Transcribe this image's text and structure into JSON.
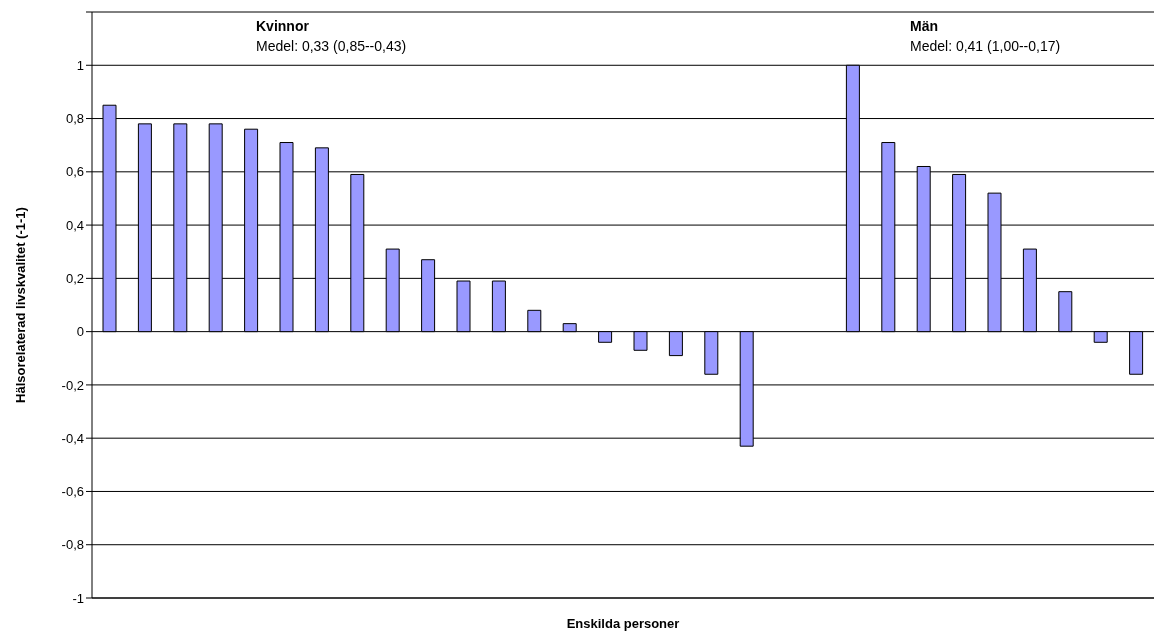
{
  "chart_data": {
    "type": "bar",
    "xlabel": "Enskilda personer",
    "ylabel": "Hälsorelaterad livskvalitet (-1-1)",
    "categories": [
      null,
      null,
      null,
      null,
      null,
      null,
      null,
      null,
      null,
      null,
      null,
      null,
      null,
      null,
      null,
      null,
      null,
      null,
      null,
      null,
      null,
      null,
      null,
      null,
      null,
      null,
      null,
      null,
      null,
      null
    ],
    "series": [
      {
        "color": "#9999ff",
        "values": [
          0.85,
          0.78,
          0.78,
          0.78,
          0.76,
          0.71,
          0.69,
          0.59,
          0.31,
          0.27,
          0.19,
          0.19,
          0.08,
          0.03,
          -0.04,
          -0.07,
          -0.09,
          -0.16,
          -0.43,
          null,
          null,
          1.0,
          0.71,
          0.62,
          0.59,
          0.52,
          0.31,
          0.15,
          -0.04,
          -0.16
        ]
      }
    ],
    "ylim": [
      -1,
      1.2
    ],
    "yticks": [
      {
        "value": -1,
        "label": "-1"
      },
      {
        "value": -0.8,
        "label": "-0,8"
      },
      {
        "value": -0.6,
        "label": "-0,6"
      },
      {
        "value": -0.4,
        "label": "-0,4"
      },
      {
        "value": -0.2,
        "label": "-0,2"
      },
      {
        "value": 0,
        "label": "0"
      },
      {
        "value": 0.2,
        "label": "0,2"
      },
      {
        "value": 0.4,
        "label": "0,4"
      },
      {
        "value": 0.6,
        "label": "0,6"
      },
      {
        "value": 0.8,
        "label": "0,8"
      },
      {
        "value": 1,
        "label": "1"
      },
      {
        "value": 1.2,
        "label": null
      }
    ],
    "grid": "y",
    "annotations": [
      "Kvinnor",
      "Medel: 0,33 (0,85--0,43)",
      "Män",
      "Medel: 0,41 (1,00--0,17)"
    ]
  }
}
